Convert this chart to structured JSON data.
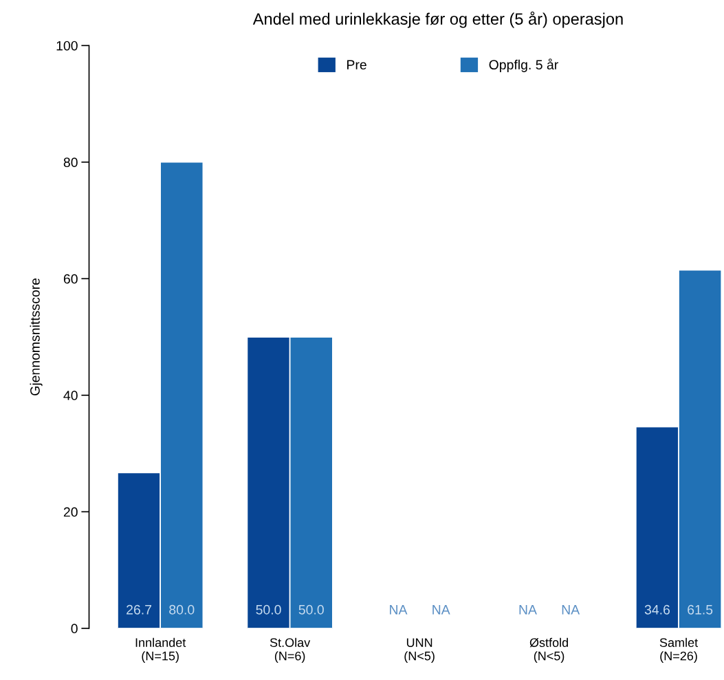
{
  "chart_data": {
    "type": "bar",
    "title": "Andel med urinlekkasje før og etter (5 år) operasjon",
    "ylabel": "Gjennomsnittsscore",
    "categories": [
      "Innlandet\n(N=15)",
      "St.Olav\n(N=6)",
      "UNN\n(N<5)",
      "Østfold\n(N<5)",
      "Samlet\n(N=26)"
    ],
    "series": [
      {
        "name": "Pre",
        "color": "#084594",
        "values": [
          26.7,
          50.0,
          null,
          null,
          34.6
        ],
        "value_labels": [
          "26.7",
          "50.0",
          "NA",
          "NA",
          "34.6"
        ]
      },
      {
        "name": "Oppflg. 5 år",
        "color": "#2171b5",
        "values": [
          80.0,
          50.0,
          null,
          null,
          61.5
        ],
        "value_labels": [
          "80.0",
          "50.0",
          "NA",
          "NA",
          "61.5"
        ]
      }
    ],
    "ylim": [
      0,
      100
    ],
    "yticks": [
      0,
      20,
      40,
      60,
      80,
      100
    ],
    "grid": false,
    "legend": "top"
  }
}
